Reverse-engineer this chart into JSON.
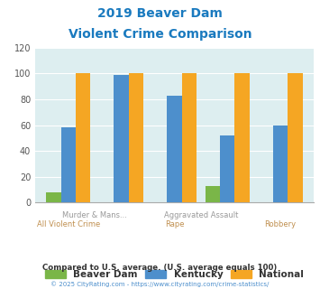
{
  "title_line1": "2019 Beaver Dam",
  "title_line2": "Violent Crime Comparison",
  "groups": [
    {
      "top_label": null,
      "bot_label": "All Violent Crime",
      "beaver_dam": 8,
      "kentucky": 58,
      "national": 100
    },
    {
      "top_label": "Murder & Mans...",
      "bot_label": null,
      "beaver_dam": 0,
      "kentucky": 99,
      "national": 100
    },
    {
      "top_label": null,
      "bot_label": "Rape",
      "beaver_dam": 0,
      "kentucky": 83,
      "national": 100
    },
    {
      "top_label": "Aggravated Assault",
      "bot_label": null,
      "beaver_dam": 13,
      "kentucky": 52,
      "national": 100
    },
    {
      "top_label": null,
      "bot_label": "Robbery",
      "beaver_dam": 0,
      "kentucky": 60,
      "national": 100
    }
  ],
  "color_beaver": "#7ab648",
  "color_kentucky": "#4d8fcc",
  "color_national": "#f5a623",
  "bg_color": "#ddeef0",
  "ylim": [
    0,
    120
  ],
  "yticks": [
    0,
    20,
    40,
    60,
    80,
    100,
    120
  ],
  "legend_labels": [
    "Beaver Dam",
    "Kentucky",
    "National"
  ],
  "footnote1": "Compared to U.S. average. (U.S. average equals 100)",
  "footnote2": "© 2025 CityRating.com - https://www.cityrating.com/crime-statistics/",
  "title_color": "#1a7abf",
  "top_xlabel_color": "#999999",
  "bot_xlabel_color": "#c09050",
  "footnote1_color": "#333333",
  "footnote2_color": "#4d8fcc"
}
